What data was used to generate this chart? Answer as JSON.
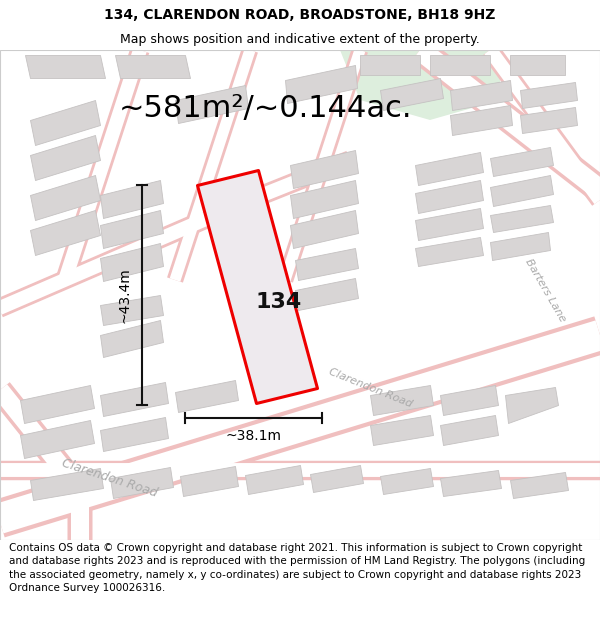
{
  "title": "134, CLARENDON ROAD, BROADSTONE, BH18 9HZ",
  "subtitle": "Map shows position and indicative extent of the property.",
  "area_text": "~581m²/~0.144ac.",
  "dim_width": "~38.1m",
  "dim_height": "~43.4m",
  "plot_label": "134",
  "footer": "Contains OS data © Crown copyright and database right 2021. This information is subject to Crown copyright and database rights 2023 and is reproduced with the permission of HM Land Registry. The polygons (including the associated geometry, namely x, y co-ordinates) are subject to Crown copyright and database rights 2023 Ordnance Survey 100026316.",
  "bg_color": "#f5f2f2",
  "road_fill": "#ffffff",
  "road_outline": "#f0bfbf",
  "building_color": "#d8d5d5",
  "building_edge": "#c5c2c2",
  "highlight_color": "#ee0000",
  "highlight_fill": "#eeeaee",
  "green_color": "#ddeedd",
  "dim_color": "#111111",
  "road_label_color": "#aaaaaa",
  "title_fontsize": 10,
  "subtitle_fontsize": 9,
  "area_fontsize": 22,
  "plot_label_fontsize": 16,
  "dim_fontsize": 10,
  "road_label_fontsize": 9,
  "footer_fontsize": 7.5
}
